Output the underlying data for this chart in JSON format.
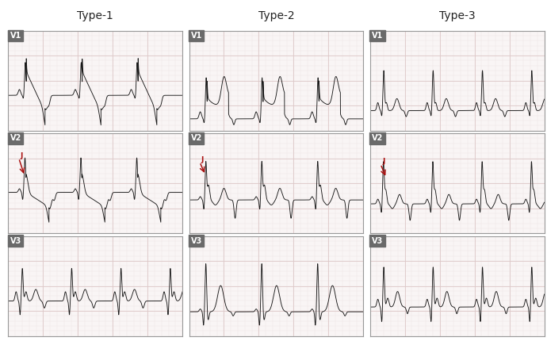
{
  "title_type1": "Type-1",
  "title_type2": "Type-2",
  "title_type3": "Type-3",
  "bg_color": "#f9f5f5",
  "grid_major_color": "#ddc8c8",
  "grid_minor_color": "#ede5e5",
  "ecg_color": "#1a1a1a",
  "panel_border_color": "#999999",
  "label_bg": "#6a6a6a",
  "label_text": "white",
  "arrow_color": "#aa1111",
  "title_fontsize": 10,
  "label_fontsize": 7,
  "fig_bg": "#ffffff"
}
